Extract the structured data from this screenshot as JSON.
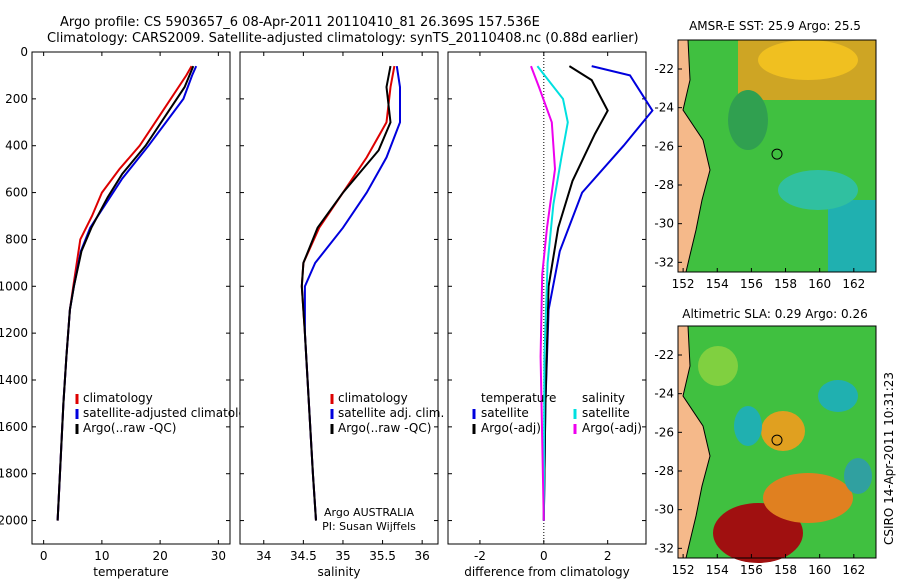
{
  "header": {
    "line1": "Argo profile: CS 5903657_6 08-Apr-2011 20110410_81 26.369S 157.536E",
    "line2": "Climatology: CARS2009. Satellite-adjusted climatology: synTS_20110408.nc (0.88d earlier)"
  },
  "footer": {
    "credit": "CSIRO 14-Apr-2011 10:31:23"
  },
  "chart_data": [
    {
      "type": "line",
      "xlabel": "temperature",
      "ylabel": "",
      "xlim": [
        -2,
        32
      ],
      "ylim": [
        2100,
        0
      ],
      "y_reversed": true,
      "xticks": [
        0,
        10,
        20,
        30
      ],
      "yticks": [
        0,
        200,
        400,
        600,
        800,
        1000,
        1200,
        1400,
        1600,
        1800,
        2000
      ],
      "legend": [
        "climatology",
        "satellite-adjusted climatology",
        "Argo(..raw -QC)"
      ],
      "legend_placement": "lower-right",
      "colors": [
        "#dd0000",
        "#0000dd",
        "#000000"
      ],
      "series": [
        {
          "name": "climatology",
          "x": [
            25.4,
            24.5,
            20.5,
            16.5,
            13,
            10,
            8.3,
            6.3,
            5.1,
            4.5,
            3.9,
            3.4,
            3.0,
            2.6,
            2.4
          ],
          "y": [
            60,
            100,
            250,
            400,
            500,
            600,
            700,
            800,
            1000,
            1100,
            1300,
            1500,
            1700,
            1900,
            2000
          ]
        },
        {
          "name": "satellite-adjusted climatology",
          "x": [
            26.2,
            25.5,
            24,
            18,
            13.5,
            10.6,
            8.0,
            6.4,
            5.2,
            4.5,
            3.9,
            3.4,
            3.0,
            2.6,
            2.4
          ],
          "y": [
            60,
            100,
            200,
            400,
            540,
            650,
            750,
            850,
            1000,
            1100,
            1300,
            1500,
            1700,
            1900,
            2000
          ]
        },
        {
          "name": "Argo(..raw -QC)",
          "x": [
            25.7,
            24.2,
            17.5,
            13.5,
            11,
            8.2,
            6.5,
            5.2,
            4.5,
            3.9,
            3.4,
            3.0,
            2.6,
            2.4
          ],
          "y": [
            60,
            150,
            400,
            520,
            620,
            750,
            850,
            1000,
            1100,
            1300,
            1500,
            1700,
            1900,
            2000
          ]
        }
      ]
    },
    {
      "type": "line",
      "xlabel": "salinity",
      "ylabel": "",
      "xlim": [
        33.7,
        36.2
      ],
      "ylim": [
        2100,
        0
      ],
      "y_reversed": true,
      "xticks": [
        34,
        34.5,
        35,
        35.5,
        36
      ],
      "legend": [
        "climatology",
        "satellite adj. clim.",
        "Argo(..raw -QC)"
      ],
      "legend_placement": "lower-right",
      "annotations": [
        "Argo AUSTRALIA",
        "PI: Susan Wijffels"
      ],
      "colors": [
        "#dd0000",
        "#0000dd",
        "#000000"
      ],
      "series": [
        {
          "name": "climatology",
          "x": [
            35.65,
            35.6,
            35.55,
            35.3,
            35.0,
            34.7,
            34.5,
            34.48,
            34.52,
            34.57,
            34.62,
            34.66
          ],
          "y": [
            60,
            150,
            300,
            450,
            600,
            750,
            900,
            1000,
            1200,
            1500,
            1800,
            2000
          ]
        },
        {
          "name": "satellite adj. clim.",
          "x": [
            35.68,
            35.72,
            35.72,
            35.55,
            35.3,
            35.0,
            34.65,
            34.52,
            34.52,
            34.57,
            34.62,
            34.66
          ],
          "y": [
            60,
            150,
            300,
            450,
            600,
            750,
            900,
            1000,
            1200,
            1500,
            1800,
            2000
          ]
        },
        {
          "name": "Argo(..raw -QC)",
          "x": [
            35.6,
            35.55,
            35.6,
            35.45,
            35.0,
            34.68,
            34.5,
            34.48,
            34.52,
            34.57,
            34.62,
            34.66
          ],
          "y": [
            60,
            150,
            300,
            420,
            600,
            750,
            900,
            1000,
            1200,
            1500,
            1800,
            2000
          ]
        }
      ]
    },
    {
      "type": "line",
      "xlabel": "difference from climatology",
      "ylabel": "",
      "xlim": [
        -3,
        3.2
      ],
      "ylim": [
        2100,
        0
      ],
      "y_reversed": true,
      "xticks": [
        -2,
        0,
        2
      ],
      "legend_groups": [
        {
          "heading": "temperature",
          "items": [
            "satellite",
            "Argo(-adj)"
          ]
        },
        {
          "heading": "salinity",
          "items": [
            "satellite",
            "Argo(-adj)"
          ]
        }
      ],
      "legend_placement": "lower-right",
      "colors": [
        "#0000dd",
        "#000000",
        "#00e0e0",
        "#ee00ee"
      ],
      "series": [
        {
          "name": "temperature satellite",
          "x": [
            1.5,
            2.7,
            3.4,
            2.5,
            1.2,
            0.5,
            0.15,
            0.05,
            0.0
          ],
          "y": [
            60,
            100,
            250,
            400,
            600,
            850,
            1100,
            1500,
            2000
          ]
        },
        {
          "name": "temperature Argo(-adj)",
          "x": [
            0.8,
            1.5,
            2.0,
            1.6,
            0.9,
            0.45,
            0.15,
            0.05,
            0.0
          ],
          "y": [
            60,
            120,
            250,
            350,
            550,
            750,
            1000,
            1500,
            2000
          ]
        },
        {
          "name": "salinity satellite",
          "x": [
            -0.2,
            0.6,
            0.75,
            0.55,
            0.3,
            0.12,
            0.02,
            0.0
          ],
          "y": [
            60,
            200,
            300,
            450,
            650,
            900,
            1300,
            2000
          ]
        },
        {
          "name": "salinity Argo(-adj)",
          "x": [
            -0.4,
            -0.15,
            0.25,
            0.35,
            0.1,
            -0.05,
            -0.1,
            0.0
          ],
          "y": [
            60,
            150,
            300,
            500,
            750,
            950,
            1300,
            2000
          ]
        }
      ]
    },
    {
      "type": "heatmap",
      "title": "AMSR-E SST: 25.9 Argo: 25.5",
      "xticks": [
        152,
        154,
        156,
        158,
        160,
        162
      ],
      "yticks": [
        -22,
        -24,
        -26,
        -28,
        -30,
        -32
      ],
      "xlim": [
        151.7,
        163.3
      ],
      "ylim": [
        -32.5,
        -20.5
      ],
      "marker": {
        "lon": 157.5,
        "lat": -26.4
      },
      "colors": {
        "land": "#f5b98a",
        "warm": "#e8a020",
        "mid": "#40c040",
        "cool": "#20b0b0"
      }
    },
    {
      "type": "heatmap",
      "title": "Altimetric SLA: 0.29 Argo: 0.26",
      "xticks": [
        152,
        154,
        156,
        158,
        160,
        162
      ],
      "yticks": [
        -22,
        -24,
        -26,
        -28,
        -30,
        -32
      ],
      "xlim": [
        151.7,
        163.3
      ],
      "ylim": [
        -32.5,
        -20.5
      ],
      "marker": {
        "lon": 157.5,
        "lat": -26.4
      },
      "colors": {
        "land": "#f5b98a",
        "high": "#a01010",
        "mid": "#40c040",
        "low": "#20b0b0"
      }
    }
  ]
}
